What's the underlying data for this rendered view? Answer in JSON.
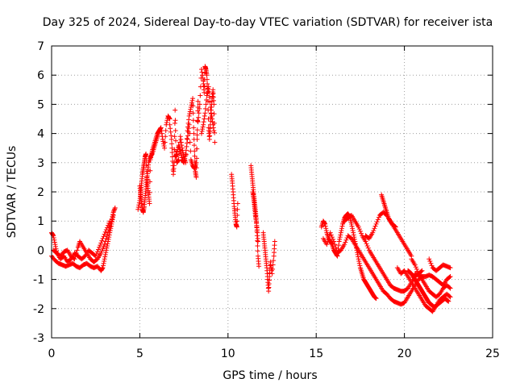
{
  "chart_data": {
    "type": "scatter",
    "title": "Day 325 of 2024, Sidereal Day-to-day VTEC variation (SDTVAR) for receiver ista",
    "xlabel": "GPS time / hours",
    "ylabel": "SDTVAR / TECUs",
    "xlim": [
      0,
      25
    ],
    "ylim": [
      -3,
      7
    ],
    "xticks": [
      0,
      5,
      10,
      15,
      20,
      25
    ],
    "yticks": [
      -3,
      -2,
      -1,
      0,
      1,
      2,
      3,
      4,
      5,
      6,
      7
    ],
    "grid": true,
    "marker": "+",
    "series": [
      {
        "name": "SDTVAR",
        "color": "#ff0000",
        "segments": [
          {
            "x": [
              0.0,
              0.1,
              0.2,
              0.3,
              0.5,
              0.7,
              0.9,
              1.1,
              1.3,
              1.5,
              1.6,
              1.8,
              2.0,
              2.2,
              2.4,
              2.6,
              2.8,
              3.0,
              3.2,
              3.4,
              3.5,
              3.6
            ],
            "y": [
              0.6,
              0.5,
              0.2,
              -0.1,
              -0.2,
              -0.05,
              0.0,
              -0.2,
              -0.3,
              0.1,
              0.3,
              0.1,
              -0.1,
              -0.3,
              -0.4,
              -0.3,
              -0.1,
              0.2,
              0.6,
              1.0,
              1.3,
              1.45
            ]
          },
          {
            "x": [
              0.0,
              0.2,
              0.4,
              0.6,
              0.8,
              1.0,
              1.2,
              1.4,
              1.6,
              1.8,
              2.0,
              2.2,
              2.4,
              2.6,
              2.8,
              2.9,
              3.0,
              3.1,
              3.2,
              3.3,
              3.4,
              3.5
            ],
            "y": [
              -0.2,
              -0.35,
              -0.45,
              -0.5,
              -0.55,
              -0.5,
              -0.45,
              -0.55,
              -0.6,
              -0.5,
              -0.45,
              -0.55,
              -0.6,
              -0.55,
              -0.7,
              -0.6,
              -0.3,
              0.0,
              0.3,
              0.6,
              0.9,
              1.2
            ]
          },
          {
            "x": [
              0.1,
              0.3,
              0.5,
              0.7,
              0.9,
              1.1,
              1.3,
              1.5,
              1.7,
              1.9,
              2.1,
              2.3,
              2.5,
              2.7,
              2.9,
              3.1,
              3.3
            ],
            "y": [
              0.0,
              -0.1,
              -0.3,
              -0.2,
              -0.4,
              -0.3,
              -0.1,
              -0.2,
              -0.3,
              -0.2,
              0.0,
              -0.1,
              -0.2,
              0.1,
              0.4,
              0.7,
              1.0
            ]
          },
          {
            "x": [
              4.9,
              5.0,
              5.05,
              5.1,
              5.15,
              5.2,
              5.25,
              5.3,
              5.35,
              5.4,
              5.45,
              5.5,
              5.55,
              5.6,
              5.7,
              5.8,
              5.9,
              6.0,
              6.1,
              6.2,
              6.3,
              6.4,
              6.5,
              6.6,
              6.7
            ],
            "y": [
              1.4,
              1.7,
              2.0,
              2.3,
              2.6,
              2.8,
              3.0,
              3.2,
              3.3,
              2.5,
              2.2,
              1.9,
              1.6,
              3.1,
              3.4,
              3.6,
              3.8,
              4.0,
              4.1,
              4.2,
              3.8,
              3.5,
              4.3,
              4.6,
              4.5
            ]
          },
          {
            "x": [
              5.0,
              5.05,
              5.1,
              5.15,
              5.2,
              5.25,
              5.3,
              5.35,
              5.4,
              5.45,
              5.5,
              5.6,
              5.7,
              5.8,
              5.9,
              6.0,
              6.1
            ],
            "y": [
              2.2,
              1.9,
              1.6,
              1.4,
              1.3,
              1.5,
              1.8,
              2.1,
              2.4,
              2.7,
              3.0,
              3.2,
              3.3,
              3.5,
              3.7,
              3.9,
              4.1
            ]
          },
          {
            "x": [
              6.7,
              6.8,
              6.85,
              6.9,
              6.95,
              7.0,
              7.05,
              7.1,
              7.2,
              7.3,
              7.4,
              7.5,
              7.6,
              7.7,
              7.8,
              7.9,
              8.0,
              8.05,
              8.1,
              8.15,
              8.2,
              8.25,
              8.3
            ],
            "y": [
              4.3,
              3.8,
              3.2,
              2.6,
              3.0,
              4.8,
              3.4,
              3.0,
              3.1,
              3.9,
              3.5,
              3.2,
              3.0,
              4.1,
              4.6,
              4.9,
              5.2,
              4.2,
              3.4,
              2.7,
              2.5,
              3.8,
              5.1
            ]
          },
          {
            "x": [
              7.0,
              7.1,
              7.2,
              7.3,
              7.4,
              7.5,
              7.6,
              7.7,
              7.8,
              7.9,
              8.0,
              8.1,
              8.2,
              8.3
            ],
            "y": [
              3.2,
              3.3,
              3.6,
              3.4,
              3.1,
              3.0,
              3.3,
              3.8,
              4.3,
              3.1,
              2.9,
              2.8,
              3.0,
              4.9
            ]
          },
          {
            "x": [
              8.3,
              8.4,
              8.5,
              8.6,
              8.65,
              8.7,
              8.75,
              8.8,
              8.85,
              8.9,
              8.95,
              9.0,
              9.05,
              9.1,
              9.15,
              9.2,
              9.25
            ],
            "y": [
              4.4,
              5.0,
              6.2,
              5.8,
              5.4,
              6.3,
              6.2,
              6.0,
              5.4,
              4.2,
              3.8,
              4.3,
              4.8,
              5.2,
              5.5,
              5.0,
              3.7
            ]
          },
          {
            "x": [
              8.5,
              8.6,
              8.7,
              8.8,
              8.9,
              9.0,
              9.1,
              9.2
            ],
            "y": [
              4.0,
              4.3,
              4.7,
              5.3,
              5.6,
              4.9,
              4.5,
              4.1
            ]
          },
          {
            "x": [
              10.2,
              10.25,
              10.3,
              10.35,
              10.4,
              10.45,
              10.5,
              10.55
            ],
            "y": [
              2.6,
              2.3,
              1.9,
              1.5,
              1.2,
              0.9,
              0.8,
              1.6
            ]
          },
          {
            "x": [
              11.3,
              11.35,
              11.4,
              11.45,
              11.5,
              11.55,
              11.6,
              11.65,
              11.7,
              11.75
            ],
            "y": [
              2.9,
              2.6,
              2.3,
              2.0,
              1.7,
              1.4,
              1.1,
              0.5,
              -0.2,
              -0.55
            ]
          },
          {
            "x": [
              11.4,
              11.45,
              11.5,
              11.55,
              11.6,
              11.65,
              11.7
            ],
            "y": [
              2.0,
              1.8,
              1.5,
              1.2,
              1.0,
              0.7,
              0.3
            ]
          },
          {
            "x": [
              12.0,
              12.05,
              12.1,
              12.15,
              12.2,
              12.25,
              12.3,
              12.35,
              12.4,
              12.5,
              12.6,
              12.65
            ],
            "y": [
              0.6,
              0.3,
              0.0,
              -0.3,
              -0.6,
              -1.0,
              -1.4,
              -0.9,
              -0.4,
              -0.8,
              -0.2,
              0.3
            ]
          },
          {
            "x": [
              15.3,
              15.4,
              15.5,
              15.6,
              15.7,
              15.8,
              15.9,
              16.0,
              16.1,
              16.2,
              16.3,
              16.4,
              16.5,
              16.6,
              16.7,
              16.8,
              16.9,
              17.0,
              17.1,
              17.2,
              17.3,
              17.4,
              17.5,
              17.6,
              17.7,
              17.8,
              17.9,
              18.0,
              18.1,
              18.2,
              18.3,
              18.4
            ],
            "y": [
              0.8,
              1.0,
              0.9,
              0.6,
              0.4,
              0.3,
              0.2,
              0.0,
              -0.1,
              -0.2,
              0.3,
              0.6,
              0.9,
              1.1,
              1.2,
              1.25,
              1.15,
              0.9,
              0.6,
              0.3,
              0.0,
              -0.3,
              -0.6,
              -0.8,
              -1.0,
              -1.1,
              -1.2,
              -1.3,
              -1.4,
              -1.5,
              -1.6,
              -1.65
            ]
          },
          {
            "x": [
              15.4,
              15.6,
              15.8,
              16.0,
              16.2,
              16.4,
              16.6,
              16.8,
              17.0,
              17.2,
              17.4,
              17.6,
              17.8,
              18.0,
              18.2,
              18.4,
              18.6,
              18.8,
              19.0,
              19.2,
              19.4,
              19.6,
              19.8,
              20.0,
              20.2,
              20.4,
              20.6,
              20.8,
              21.0
            ],
            "y": [
              0.4,
              0.2,
              0.6,
              0.3,
              -0.1,
              0.0,
              0.2,
              0.5,
              0.4,
              0.2,
              0.0,
              -0.2,
              -0.4,
              -0.6,
              -0.8,
              -1.0,
              -1.2,
              -1.4,
              -1.5,
              -1.65,
              -1.75,
              -1.8,
              -1.85,
              -1.8,
              -1.6,
              -1.4,
              -1.2,
              -1.0,
              -0.9
            ]
          },
          {
            "x": [
              16.6,
              16.8,
              17.0,
              17.2,
              17.4,
              17.6,
              17.8,
              18.0,
              18.2,
              18.4,
              18.6,
              18.8,
              19.0,
              19.2,
              19.4,
              19.6,
              19.8,
              20.0,
              20.2,
              20.4,
              20.6,
              20.8,
              21.0
            ],
            "y": [
              1.0,
              1.1,
              1.2,
              1.0,
              0.8,
              0.5,
              0.3,
              0.0,
              -0.2,
              -0.4,
              -0.6,
              -0.8,
              -1.0,
              -1.2,
              -1.3,
              -1.35,
              -1.4,
              -1.4,
              -1.3,
              -1.1,
              -0.9,
              -0.8,
              -0.7
            ]
          },
          {
            "x": [
              17.8,
              18.0,
              18.2,
              18.4,
              18.6,
              18.8,
              19.0,
              19.2,
              19.4,
              19.6,
              19.8,
              20.0,
              20.2,
              20.4
            ],
            "y": [
              0.5,
              0.4,
              0.6,
              0.9,
              1.2,
              1.3,
              1.2,
              1.0,
              0.8,
              0.6,
              0.4,
              0.2,
              0.0,
              -0.2
            ]
          },
          {
            "x": [
              18.7,
              18.8,
              18.9,
              19.0,
              19.1,
              19.2,
              19.3,
              19.4,
              19.5
            ],
            "y": [
              1.9,
              1.7,
              1.5,
              1.3,
              1.1,
              1.0,
              0.9,
              0.85,
              0.8
            ]
          },
          {
            "x": [
              19.6,
              19.8,
              20.0,
              20.2,
              20.4,
              20.6,
              20.8,
              21.0,
              21.2,
              21.4,
              21.6,
              21.8,
              22.0,
              22.2,
              22.4,
              22.6
            ],
            "y": [
              -0.6,
              -0.8,
              -0.7,
              -0.9,
              -1.1,
              -1.3,
              -1.5,
              -1.7,
              -1.9,
              -2.0,
              -2.1,
              -1.9,
              -1.7,
              -1.6,
              -1.5,
              -1.6
            ]
          },
          {
            "x": [
              20.4,
              20.6,
              20.8,
              21.0,
              21.2,
              21.4,
              21.6,
              21.8,
              22.0,
              22.2,
              22.4,
              22.6
            ],
            "y": [
              -0.3,
              -0.5,
              -0.8,
              -1.0,
              -1.2,
              -1.4,
              -1.5,
              -1.6,
              -1.5,
              -1.3,
              -1.2,
              -1.3
            ]
          },
          {
            "x": [
              20.6,
              20.8,
              21.0,
              21.2,
              21.4,
              21.6,
              21.8,
              22.0,
              22.2,
              22.4,
              22.6
            ],
            "y": [
              -0.8,
              -0.85,
              -0.9,
              -0.9,
              -0.85,
              -0.9,
              -1.0,
              -1.1,
              -1.2,
              -1.0,
              -0.9
            ]
          },
          {
            "x": [
              21.4,
              21.6,
              21.8,
              22.0,
              22.2,
              22.4,
              22.6
            ],
            "y": [
              -0.3,
              -0.6,
              -0.7,
              -0.6,
              -0.5,
              -0.55,
              -0.6
            ]
          },
          {
            "x": [
              20.2,
              20.3,
              20.4,
              20.5,
              20.6,
              20.7,
              20.8,
              20.9,
              21.0,
              21.1,
              21.2,
              21.3,
              21.4,
              21.5,
              21.6,
              21.7,
              21.8,
              21.9,
              22.0,
              22.1,
              22.2,
              22.3,
              22.4,
              22.5
            ],
            "y": [
              -0.7,
              -0.75,
              -0.8,
              -0.9,
              -1.0,
              -1.1,
              -1.2,
              -1.3,
              -1.4,
              -1.5,
              -1.6,
              -1.7,
              -1.8,
              -1.85,
              -1.9,
              -1.95,
              -1.9,
              -1.85,
              -1.8,
              -1.75,
              -1.7,
              -1.65,
              -1.7,
              -1.75
            ]
          }
        ]
      }
    ]
  }
}
